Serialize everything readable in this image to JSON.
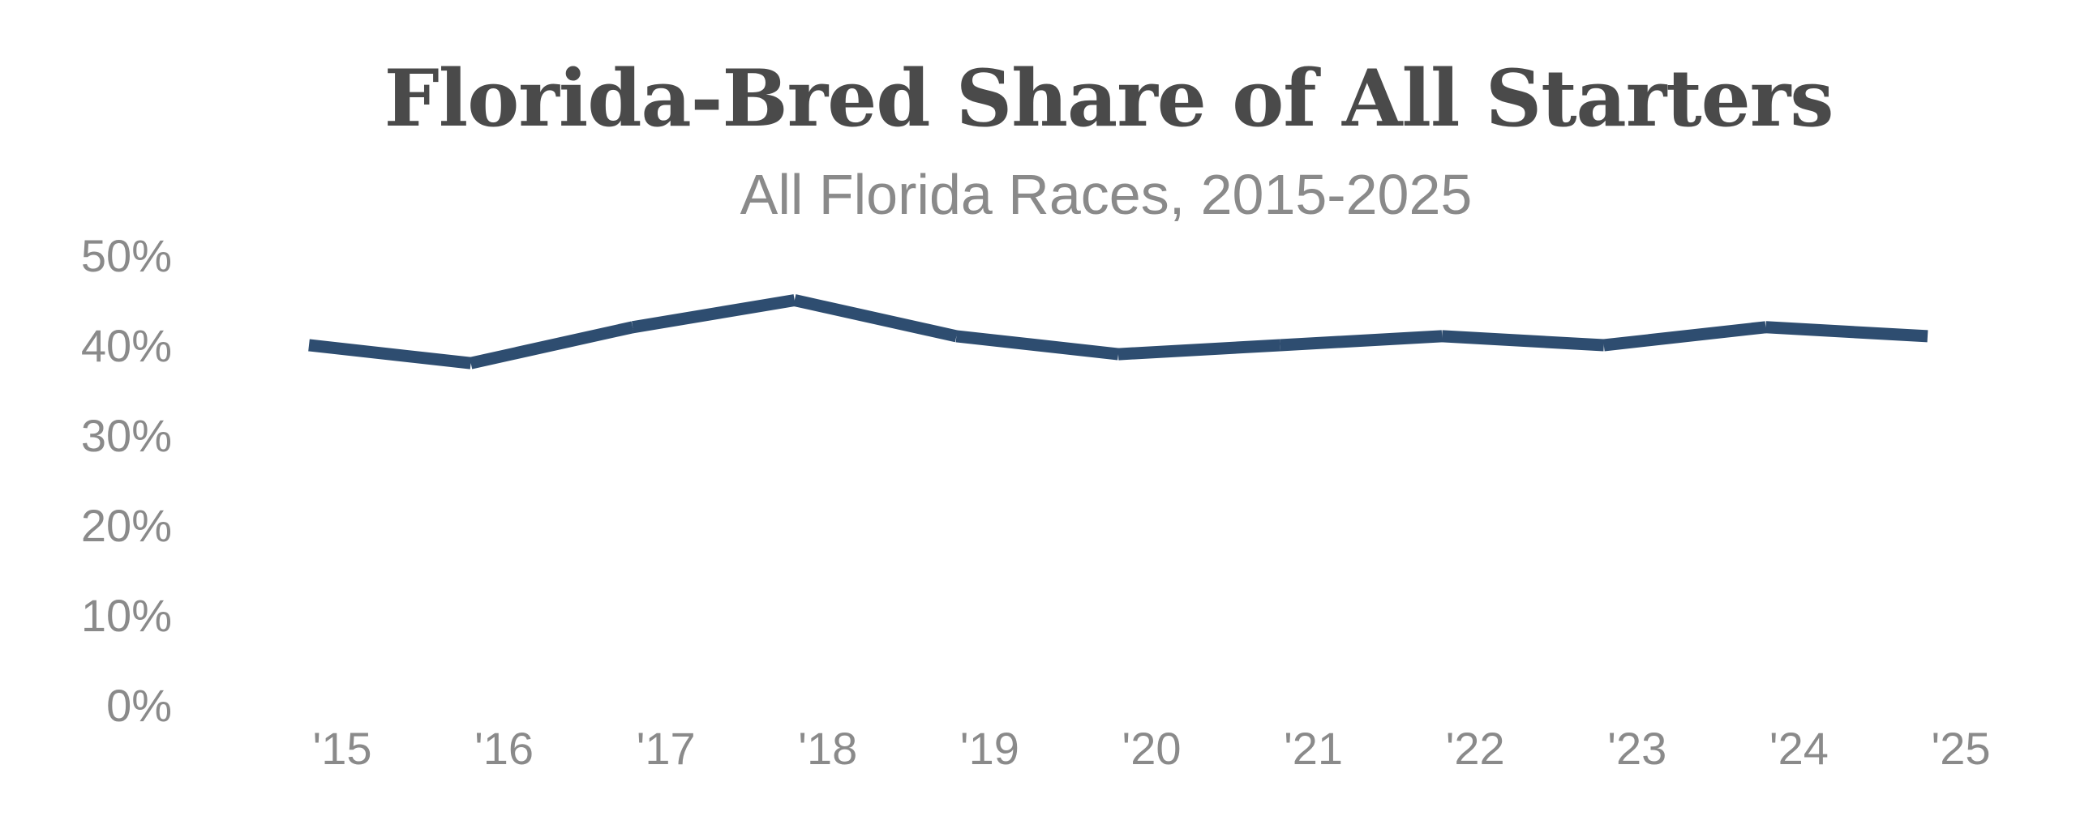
{
  "chart_data": {
    "type": "line",
    "title": "Florida-Bred Share of All Starters",
    "subtitle": "All Florida Races, 2015-2025",
    "xlabel": "",
    "ylabel": "",
    "categories": [
      "'15",
      "'16",
      "'17",
      "'18",
      "'19",
      "'20",
      "'21",
      "'22",
      "'23",
      "'24",
      "'25"
    ],
    "series": [
      {
        "name": "Florida-Bred Share of All Starters",
        "color": "#2e4d70",
        "values": [
          40,
          38,
          42,
          45,
          41,
          39,
          40,
          41,
          40,
          42,
          41
        ]
      }
    ],
    "ylim": [
      0,
      50
    ],
    "yticks": [
      0,
      10,
      20,
      30,
      40,
      50
    ],
    "ytick_labels": [
      "0%",
      "10%",
      "20%",
      "30%",
      "40%",
      "50%"
    ],
    "grid": false,
    "legend": "none"
  }
}
